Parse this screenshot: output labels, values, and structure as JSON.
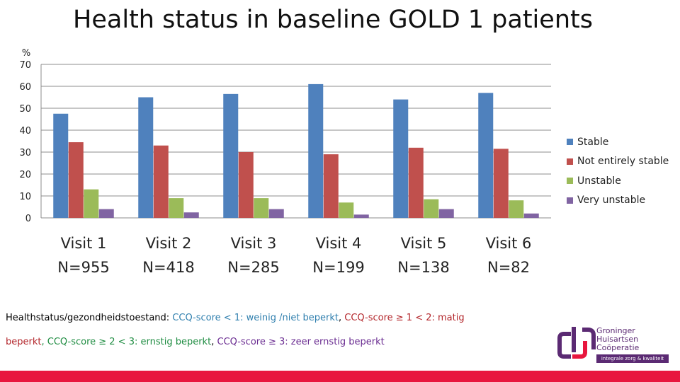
{
  "chart_data": {
    "type": "bar",
    "title": "Health status in baseline GOLD 1 patients",
    "ylabel": "%",
    "ylim": [
      0,
      70
    ],
    "yticks": [
      0,
      10,
      20,
      30,
      40,
      50,
      60,
      70
    ],
    "categories": [
      [
        "Visit 1",
        "N=955"
      ],
      [
        "Visit 2",
        "N=418"
      ],
      [
        "Visit 3",
        "N=285"
      ],
      [
        "Visit 4",
        "N=199"
      ],
      [
        "Visit 5",
        "N=138"
      ],
      [
        "Visit 6",
        "N=82"
      ]
    ],
    "series": [
      {
        "name": "Stable",
        "color": "#4f81bd",
        "values": [
          47.5,
          55,
          56.5,
          61,
          54,
          57
        ]
      },
      {
        "name": "Not entirely stable",
        "color": "#c0504d",
        "values": [
          34.5,
          33,
          30,
          29,
          32,
          31.5
        ]
      },
      {
        "name": "Unstable",
        "color": "#9bbb59",
        "values": [
          13,
          9,
          9,
          7,
          8.5,
          8
        ]
      },
      {
        "name": "Very unstable",
        "color": "#8064a2",
        "values": [
          4,
          2.5,
          4,
          1.5,
          4,
          2
        ]
      }
    ],
    "grid": true,
    "legend_position": "right"
  },
  "notes": {
    "line1": [
      {
        "text": "Healthstatus/gezondheidstoestand: ",
        "color": "black"
      },
      {
        "text": "CCQ-score < 1: weinig /niet beperkt",
        "color": "blue"
      },
      {
        "text": ", ",
        "color": "black"
      },
      {
        "text": "CCQ-score ≥ 1 < 2: matig",
        "color": "red"
      }
    ],
    "line2": [
      {
        "text": "beperkt",
        "color": "red"
      },
      {
        "text": ", CCQ-score ≥ 2 < 3: ernstig beperkt",
        "color": "green"
      },
      {
        "text": ", ",
        "color": "black"
      },
      {
        "text": "CCQ-score ≥ 3: zeer ernstig beperkt",
        "color": "purple"
      }
    ]
  },
  "logo": {
    "lines": [
      "Groninger",
      "Huisartsen",
      "Coöperatie"
    ],
    "tagline": "integrale zorg & kwaliteit"
  },
  "colors": {
    "accent_bar": "#e8163e",
    "logo_purple": "#5b2a73"
  }
}
